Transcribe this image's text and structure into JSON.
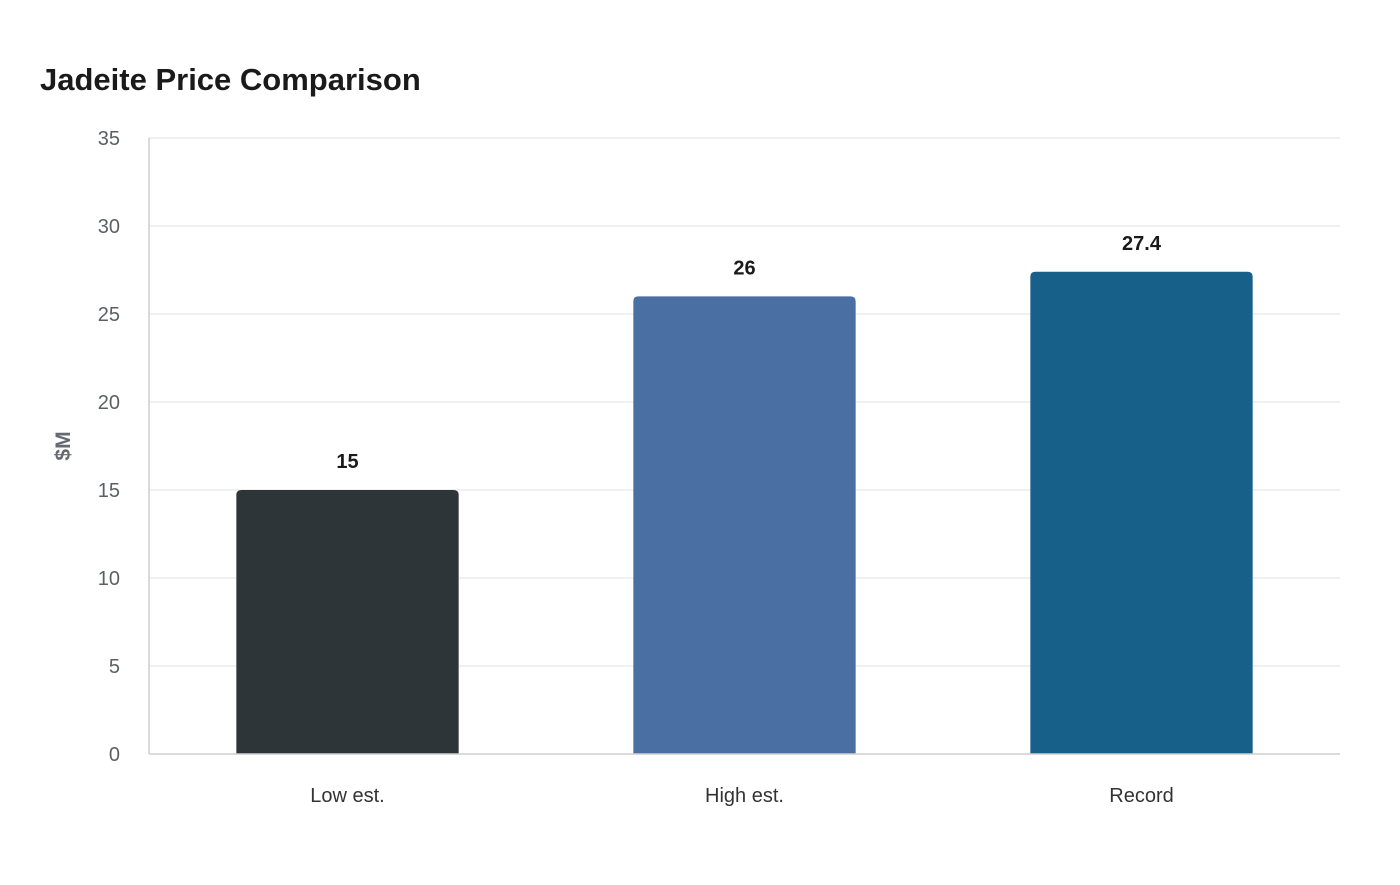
{
  "chart_data": {
    "type": "bar",
    "title": "Jadeite Price Comparison",
    "xlabel": "",
    "ylabel": "$M",
    "categories": [
      "Low est.",
      "High est.",
      "Record"
    ],
    "values": [
      15,
      26,
      27.4
    ],
    "data_labels": [
      "15",
      "26",
      "27.4"
    ],
    "colors": [
      "#2e3538",
      "#4a6fa3",
      "#176089"
    ],
    "ylim": [
      0,
      35
    ],
    "yticks": [
      0,
      5,
      10,
      15,
      20,
      25,
      30,
      35
    ],
    "grid": true,
    "legend": "none"
  }
}
